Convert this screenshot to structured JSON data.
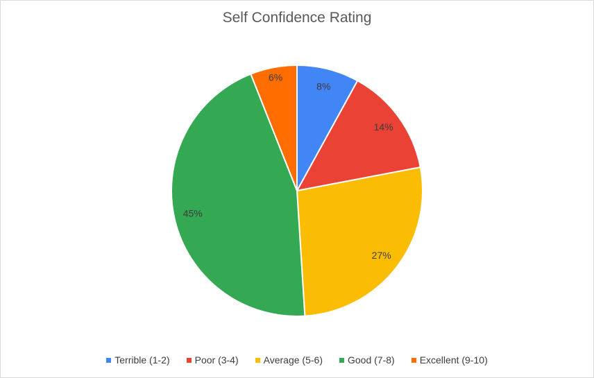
{
  "chart_data": {
    "type": "pie",
    "title": "Self Confidence Rating",
    "categories": [
      "Terrible (1-2)",
      "Poor (3-4)",
      "Average (5-6)",
      "Good (7-8)",
      "Excellent (9-10)"
    ],
    "values": [
      8,
      14,
      27,
      45,
      6
    ],
    "value_labels": [
      "8%",
      "14%",
      "27%",
      "45%",
      "6%"
    ],
    "colors": [
      "#4285f4",
      "#ea4335",
      "#fbbc04",
      "#34a853",
      "#ff6d01"
    ],
    "legend_position": "bottom"
  }
}
